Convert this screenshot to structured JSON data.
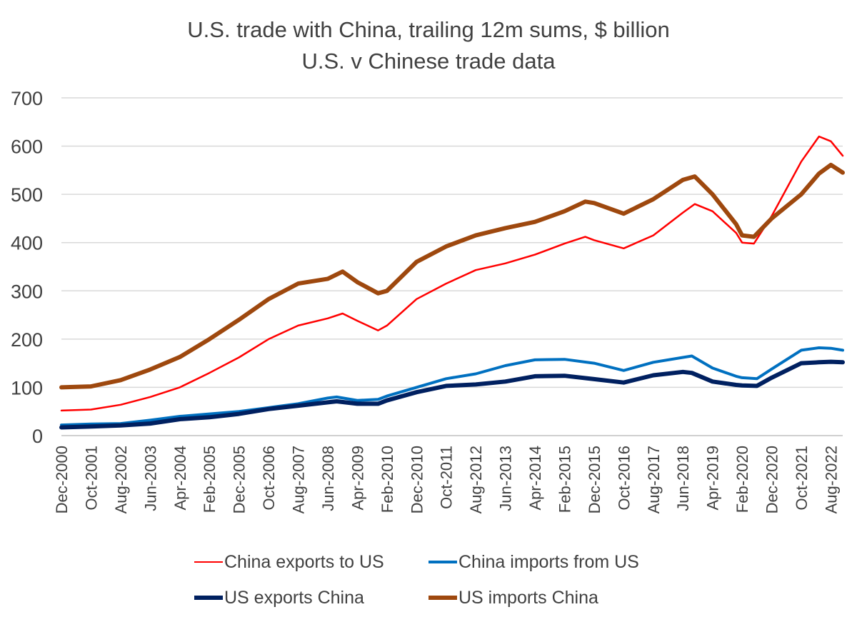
{
  "chart_data": {
    "type": "line",
    "title": "U.S. trade with China, trailing 12m sums, $ billion",
    "subtitle": "U.S. v Chinese trade data",
    "xlabel": "",
    "ylabel": "",
    "ylim": [
      0,
      700
    ],
    "yticks": [
      "0",
      "100",
      "200",
      "300",
      "400",
      "500",
      "600",
      "700"
    ],
    "x_tick_labels": [
      "Dec-2000",
      "Oct-2001",
      "Aug-2002",
      "Jun-2003",
      "Apr-2004",
      "Feb-2005",
      "Dec-2005",
      "Oct-2006",
      "Aug-2007",
      "Jun-2008",
      "Apr-2009",
      "Feb-2010",
      "Dec-2010",
      "Oct-2011",
      "Aug-2012",
      "Jun-2013",
      "Apr-2014",
      "Feb-2015",
      "Dec-2015",
      "Oct-2016",
      "Aug-2017",
      "Jun-2018",
      "Apr-2019",
      "Feb-2020",
      "Dec-2020",
      "Oct-2021",
      "Aug-2022"
    ],
    "x_range": [
      "Dec-2000",
      "Dec-2022"
    ],
    "grid": "horizontal",
    "legend_position": "bottom",
    "series": [
      {
        "name": "China exports to US",
        "color": "#ff0000",
        "width": "thin",
        "points": [
          [
            "Dec-2000",
            52
          ],
          [
            "Oct-2001",
            54
          ],
          [
            "Aug-2002",
            64
          ],
          [
            "Jun-2003",
            80
          ],
          [
            "Apr-2004",
            100
          ],
          [
            "Feb-2005",
            130
          ],
          [
            "Dec-2005",
            162
          ],
          [
            "Oct-2006",
            200
          ],
          [
            "Aug-2007",
            228
          ],
          [
            "Jun-2008",
            243
          ],
          [
            "Nov-2008",
            253
          ],
          [
            "Apr-2009",
            238
          ],
          [
            "Nov-2009",
            218
          ],
          [
            "Feb-2010",
            228
          ],
          [
            "Dec-2010",
            283
          ],
          [
            "Oct-2011",
            315
          ],
          [
            "Aug-2012",
            343
          ],
          [
            "Jun-2013",
            357
          ],
          [
            "Apr-2014",
            375
          ],
          [
            "Feb-2015",
            398
          ],
          [
            "Sep-2015",
            412
          ],
          [
            "Dec-2015",
            405
          ],
          [
            "Oct-2016",
            388
          ],
          [
            "Aug-2017",
            415
          ],
          [
            "Jun-2018",
            462
          ],
          [
            "Oct-2018",
            480
          ],
          [
            "Apr-2019",
            465
          ],
          [
            "Dec-2019",
            420
          ],
          [
            "Feb-2020",
            400
          ],
          [
            "Jun-2020",
            398
          ],
          [
            "Dec-2020",
            455
          ],
          [
            "Oct-2021",
            568
          ],
          [
            "Apr-2022",
            620
          ],
          [
            "Aug-2022",
            610
          ],
          [
            "Dec-2022",
            580
          ]
        ]
      },
      {
        "name": "China imports from US",
        "color": "#0070c0",
        "width": "medium",
        "points": [
          [
            "Dec-2000",
            22
          ],
          [
            "Oct-2001",
            24
          ],
          [
            "Aug-2002",
            25
          ],
          [
            "Jun-2003",
            32
          ],
          [
            "Apr-2004",
            40
          ],
          [
            "Feb-2005",
            45
          ],
          [
            "Dec-2005",
            50
          ],
          [
            "Oct-2006",
            58
          ],
          [
            "Aug-2007",
            66
          ],
          [
            "Jun-2008",
            78
          ],
          [
            "Sep-2008",
            80
          ],
          [
            "Apr-2009",
            73
          ],
          [
            "Nov-2009",
            75
          ],
          [
            "Feb-2010",
            82
          ],
          [
            "Dec-2010",
            100
          ],
          [
            "Oct-2011",
            118
          ],
          [
            "Aug-2012",
            128
          ],
          [
            "Jun-2013",
            145
          ],
          [
            "Apr-2014",
            157
          ],
          [
            "Feb-2015",
            158
          ],
          [
            "Dec-2015",
            150
          ],
          [
            "Oct-2016",
            135
          ],
          [
            "Aug-2017",
            152
          ],
          [
            "Jun-2018",
            162
          ],
          [
            "Sep-2018",
            165
          ],
          [
            "Apr-2019",
            140
          ],
          [
            "Dec-2019",
            123
          ],
          [
            "Feb-2020",
            120
          ],
          [
            "Jul-2020",
            118
          ],
          [
            "Dec-2020",
            138
          ],
          [
            "Oct-2021",
            177
          ],
          [
            "Apr-2022",
            182
          ],
          [
            "Aug-2022",
            181
          ],
          [
            "Dec-2022",
            177
          ]
        ]
      },
      {
        "name": "US exports China",
        "color": "#002060",
        "width": "thick",
        "points": [
          [
            "Dec-2000",
            17
          ],
          [
            "Oct-2001",
            19
          ],
          [
            "Aug-2002",
            21
          ],
          [
            "Jun-2003",
            25
          ],
          [
            "Apr-2004",
            34
          ],
          [
            "Feb-2005",
            38
          ],
          [
            "Dec-2005",
            45
          ],
          [
            "Oct-2006",
            55
          ],
          [
            "Aug-2007",
            62
          ],
          [
            "Jun-2008",
            69
          ],
          [
            "Sep-2008",
            71
          ],
          [
            "Apr-2009",
            66
          ],
          [
            "Nov-2009",
            66
          ],
          [
            "Feb-2010",
            73
          ],
          [
            "Dec-2010",
            90
          ],
          [
            "Oct-2011",
            103
          ],
          [
            "Aug-2012",
            106
          ],
          [
            "Jun-2013",
            112
          ],
          [
            "Apr-2014",
            123
          ],
          [
            "Feb-2015",
            124
          ],
          [
            "Dec-2015",
            117
          ],
          [
            "Oct-2016",
            110
          ],
          [
            "Aug-2017",
            125
          ],
          [
            "Jun-2018",
            132
          ],
          [
            "Sep-2018",
            130
          ],
          [
            "Apr-2019",
            112
          ],
          [
            "Dec-2019",
            105
          ],
          [
            "Feb-2020",
            104
          ],
          [
            "Jul-2020",
            103
          ],
          [
            "Dec-2020",
            120
          ],
          [
            "Oct-2021",
            150
          ],
          [
            "Apr-2022",
            152
          ],
          [
            "Aug-2022",
            153
          ],
          [
            "Dec-2022",
            152
          ]
        ]
      },
      {
        "name": "US imports China",
        "color": "#9e480e",
        "width": "thick",
        "points": [
          [
            "Dec-2000",
            100
          ],
          [
            "Oct-2001",
            102
          ],
          [
            "Aug-2002",
            115
          ],
          [
            "Jun-2003",
            137
          ],
          [
            "Apr-2004",
            163
          ],
          [
            "Feb-2005",
            200
          ],
          [
            "Dec-2005",
            240
          ],
          [
            "Oct-2006",
            283
          ],
          [
            "Aug-2007",
            315
          ],
          [
            "Jun-2008",
            325
          ],
          [
            "Nov-2008",
            340
          ],
          [
            "Apr-2009",
            318
          ],
          [
            "Nov-2009",
            295
          ],
          [
            "Feb-2010",
            300
          ],
          [
            "Dec-2010",
            360
          ],
          [
            "Oct-2011",
            392
          ],
          [
            "Aug-2012",
            415
          ],
          [
            "Jun-2013",
            430
          ],
          [
            "Apr-2014",
            443
          ],
          [
            "Feb-2015",
            465
          ],
          [
            "Sep-2015",
            485
          ],
          [
            "Dec-2015",
            482
          ],
          [
            "Oct-2016",
            460
          ],
          [
            "Aug-2017",
            490
          ],
          [
            "Jun-2018",
            530
          ],
          [
            "Oct-2018",
            537
          ],
          [
            "Apr-2019",
            500
          ],
          [
            "Dec-2019",
            438
          ],
          [
            "Feb-2020",
            415
          ],
          [
            "Jun-2020",
            412
          ],
          [
            "Dec-2020",
            450
          ],
          [
            "Oct-2021",
            500
          ],
          [
            "Apr-2022",
            543
          ],
          [
            "Aug-2022",
            561
          ],
          [
            "Dec-2022",
            545
          ]
        ]
      }
    ]
  }
}
